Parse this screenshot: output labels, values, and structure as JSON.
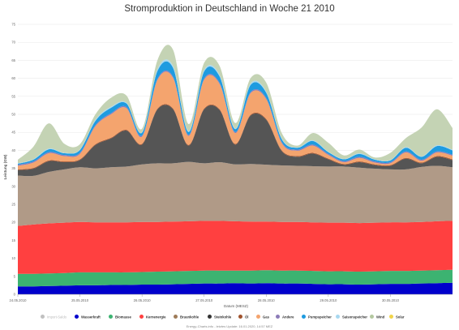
{
  "chart_data": {
    "type": "area",
    "title": "Stromproduktion in Deutschland in Woche 21 2010",
    "xlabel": "Datum (MESZ)",
    "ylabel": "Leistung (GW)",
    "ylim": [
      0,
      75
    ],
    "yticks": [
      0,
      5,
      10,
      15,
      20,
      25,
      30,
      35,
      40,
      45,
      50,
      55,
      60,
      65,
      70,
      75
    ],
    "x": [
      0,
      6,
      12,
      18,
      24,
      30,
      36,
      42,
      48,
      54,
      60,
      66,
      72,
      78,
      84,
      90,
      96,
      102,
      108,
      114,
      120,
      126,
      132,
      138,
      144,
      150,
      156,
      162,
      168
    ],
    "xticks": [
      {
        "hour": 0,
        "label": "24.05.2010"
      },
      {
        "hour": 24,
        "label": "25.05.2010"
      },
      {
        "hour": 48,
        "label": "26.05.2010"
      },
      {
        "hour": 72,
        "label": "27.05.2010"
      },
      {
        "hour": 96,
        "label": "28.05.2010"
      },
      {
        "hour": 120,
        "label": "29.05.2010"
      },
      {
        "hour": 144,
        "label": "30.05.2010"
      }
    ],
    "grid": true,
    "legend_position": "bottom",
    "series": [
      {
        "name": "Wasserkraft",
        "color": "#0000cc",
        "stack": true,
        "values": [
          2.2,
          2.2,
          2.3,
          2.4,
          2.5,
          2.5,
          2.6,
          2.6,
          2.7,
          2.7,
          2.8,
          2.9,
          3.0,
          3.0,
          3.1,
          3.0,
          3.1,
          3.0,
          3.0,
          2.9,
          2.8,
          2.8,
          2.7,
          2.8,
          2.9,
          2.9,
          3.0,
          3.1,
          3.2
        ]
      },
      {
        "name": "Biomasse",
        "color": "#3cb371",
        "stack": true,
        "values": [
          3.5,
          3.5,
          3.5,
          3.5,
          3.6,
          3.6,
          3.5,
          3.5,
          3.5,
          3.6,
          3.6,
          3.6,
          3.6,
          3.6,
          3.5,
          3.6,
          3.6,
          3.6,
          3.6,
          3.6,
          3.6,
          3.6,
          3.6,
          3.6,
          3.6,
          3.6,
          3.6,
          3.6,
          3.6
        ]
      },
      {
        "name": "Kernenergie",
        "color": "#ff4040",
        "stack": true,
        "values": [
          13.3,
          13.7,
          13.9,
          14.0,
          14.0,
          13.9,
          13.9,
          13.9,
          13.9,
          13.8,
          13.8,
          13.8,
          13.8,
          13.8,
          13.7,
          13.6,
          13.5,
          13.5,
          13.5,
          13.5,
          13.5,
          13.5,
          13.5,
          13.5,
          13.5,
          13.5,
          13.5,
          13.6,
          13.6
        ]
      },
      {
        "name": "Braunkohle",
        "color": "#b09a87",
        "stack": true,
        "values": [
          14.0,
          13.5,
          14.3,
          14.8,
          15.2,
          15.0,
          15.3,
          15.5,
          16.0,
          16.3,
          16.2,
          16.5,
          16.0,
          16.3,
          15.8,
          16.0,
          15.8,
          15.7,
          15.6,
          15.6,
          15.6,
          15.6,
          15.4,
          15.0,
          14.7,
          14.7,
          15.3,
          15.4,
          14.9
        ]
      },
      {
        "name": "Steinkohle",
        "color": "#555555",
        "stack": true,
        "values": [
          1.5,
          2.0,
          3.0,
          2.0,
          2.0,
          6.5,
          8.0,
          10.0,
          5.5,
          15.0,
          15.0,
          4.5,
          15.0,
          14.5,
          5.5,
          13.5,
          12.5,
          4.0,
          2.5,
          3.5,
          2.0,
          0.5,
          1.5,
          1.0,
          1.0,
          3.0,
          1.0,
          2.5,
          2.0
        ]
      },
      {
        "name": "Öl",
        "color": "#a0522d",
        "stack": true,
        "values": [
          0.2,
          0.2,
          0.2,
          0.2,
          0.2,
          0.2,
          0.2,
          0.2,
          0.2,
          0.2,
          0.2,
          0.2,
          0.2,
          0.2,
          0.2,
          0.2,
          0.2,
          0.2,
          0.2,
          0.2,
          0.2,
          0.2,
          0.2,
          0.2,
          0.2,
          0.2,
          0.2,
          0.2,
          0.2
        ]
      },
      {
        "name": "Gas",
        "color": "#f4a46e",
        "stack": true,
        "values": [
          1.0,
          1.5,
          2.0,
          1.5,
          1.5,
          5.0,
          6.5,
          6.0,
          2.0,
          8.0,
          8.5,
          2.5,
          8.0,
          7.0,
          3.0,
          6.0,
          5.5,
          2.0,
          1.5,
          2.0,
          1.0,
          0.5,
          1.0,
          0.5,
          0.5,
          1.5,
          0.5,
          1.0,
          1.0
        ]
      },
      {
        "name": "Andere",
        "color": "#8c7bb8",
        "stack": true,
        "values": [
          0.3,
          0.3,
          0.3,
          0.3,
          0.3,
          0.3,
          0.3,
          0.3,
          0.3,
          0.3,
          0.3,
          0.3,
          0.3,
          0.3,
          0.3,
          0.3,
          0.3,
          0.3,
          0.3,
          0.3,
          0.3,
          0.3,
          0.3,
          0.3,
          0.3,
          0.3,
          0.3,
          0.3,
          0.3
        ]
      },
      {
        "name": "Pumpspeicher",
        "color": "#1e9be0",
        "stack": true,
        "values": [
          0.3,
          0.5,
          0.8,
          0.5,
          0.8,
          1.2,
          1.5,
          1.0,
          0.8,
          2.2,
          2.5,
          0.8,
          2.0,
          1.8,
          0.8,
          2.0,
          1.5,
          0.8,
          0.5,
          1.0,
          0.5,
          0.5,
          0.8,
          0.5,
          0.5,
          1.0,
          0.8,
          1.5,
          1.2
        ]
      },
      {
        "name": "Saisonspeicher",
        "color": "#a8d8f0",
        "stack": true,
        "values": [
          0.1,
          0.1,
          0.2,
          0.1,
          0.1,
          0.3,
          0.3,
          0.2,
          0.1,
          0.5,
          0.5,
          0.2,
          0.4,
          0.4,
          0.2,
          0.4,
          0.3,
          0.2,
          0.1,
          0.2,
          0.1,
          0.1,
          0.2,
          0.1,
          0.1,
          0.2,
          0.1,
          0.2,
          0.2
        ]
      },
      {
        "name": "Wind",
        "color": "#c4d3b4",
        "stack": true,
        "values": [
          1.0,
          3.5,
          7.0,
          2.5,
          1.5,
          1.5,
          2.5,
          2.0,
          1.0,
          2.5,
          4.5,
          2.0,
          2.0,
          2.5,
          1.5,
          1.5,
          2.5,
          1.5,
          0.5,
          2.0,
          2.5,
          1.0,
          1.0,
          0.5,
          2.0,
          2.5,
          8.0,
          10.0,
          6.0
        ]
      },
      {
        "name": "Solar",
        "color": "#f1d44a",
        "stack": true,
        "values": [
          0,
          0,
          0,
          0,
          0,
          0,
          0,
          0,
          0,
          0,
          0,
          0,
          0,
          0,
          0,
          0,
          0,
          0,
          0,
          0,
          0,
          0,
          0,
          0,
          0,
          0,
          0,
          0,
          0
        ]
      }
    ],
    "legend": [
      {
        "name": "Import-Saldo",
        "color": "#c0c0c0",
        "visible": false
      },
      {
        "name": "Wasserkraft",
        "color": "#0000cc",
        "visible": true
      },
      {
        "name": "Biomasse",
        "color": "#3cb371",
        "visible": true
      },
      {
        "name": "Kernenergie",
        "color": "#ff4040",
        "visible": true
      },
      {
        "name": "Braunkohle",
        "color": "#9e7b58",
        "visible": true
      },
      {
        "name": "Steinkohle",
        "color": "#333333",
        "visible": true
      },
      {
        "name": "Öl",
        "color": "#a0522d",
        "visible": true
      },
      {
        "name": "Gas",
        "color": "#f4a46e",
        "visible": true
      },
      {
        "name": "Andere",
        "color": "#8c7bb8",
        "visible": true
      },
      {
        "name": "Pumpspeicher",
        "color": "#1e9be0",
        "visible": true
      },
      {
        "name": "Saisonspeicher",
        "color": "#a8d8f0",
        "visible": true
      },
      {
        "name": "Wind",
        "color": "#b4c8a0",
        "visible": true
      },
      {
        "name": "Solar",
        "color": "#f1d44a",
        "visible": true
      }
    ]
  },
  "credits": "Energy-Charts.info - letztes Update: 16.01.2020, 14:57 MEZ"
}
